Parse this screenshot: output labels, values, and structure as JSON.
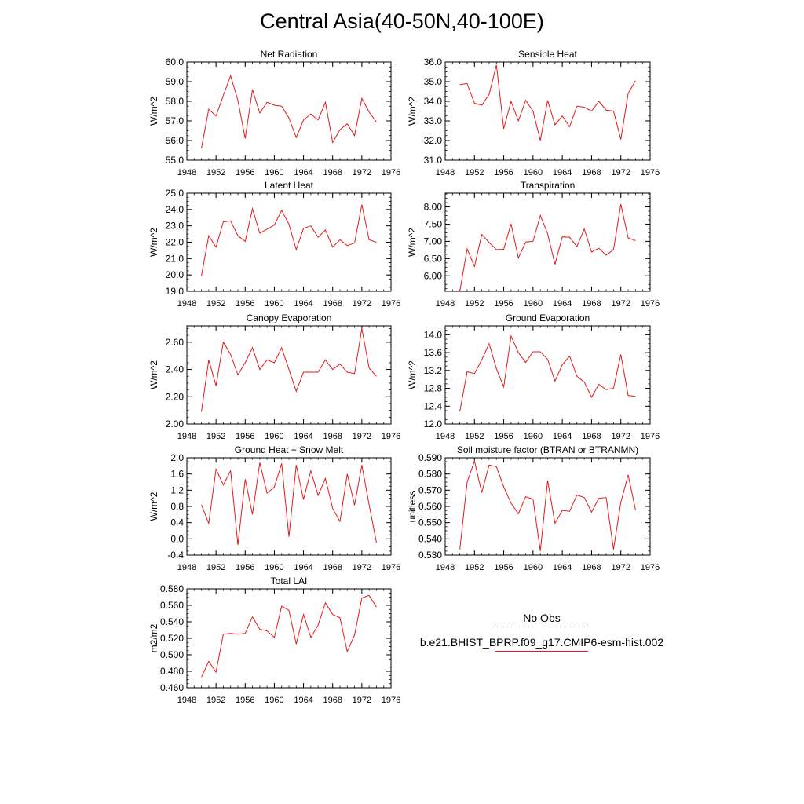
{
  "page": {
    "title": "Central Asia(40-50N,40-100E)"
  },
  "legend": {
    "obs_label": "No Obs",
    "model_label": "b.e21.BHIST_BPRP.f09_g17.CMIP6-esm-hist.002"
  },
  "colors": {
    "model_line": "#e31a1c",
    "obs_line": "#555555",
    "axis": "#000000"
  },
  "chart_data": [
    {
      "type": "line",
      "title": "Net Radiation",
      "ylabel": "W/m^2",
      "xlim": [
        1948,
        1976
      ],
      "ylim": [
        55.0,
        60.0
      ],
      "xticks": [
        1948,
        1952,
        1956,
        1960,
        1964,
        1968,
        1972,
        1976
      ],
      "yticks": [
        "55.0",
        "56.0",
        "57.0",
        "58.0",
        "59.0",
        "60.0"
      ],
      "x": [
        1950,
        1951,
        1952,
        1953,
        1954,
        1955,
        1956,
        1957,
        1958,
        1959,
        1960,
        1961,
        1962,
        1963,
        1964,
        1965,
        1966,
        1967,
        1968,
        1969,
        1970,
        1971,
        1972,
        1973,
        1974
      ],
      "series": [
        {
          "values": [
            55.6,
            57.6,
            57.25,
            58.3,
            59.3,
            58.05,
            56.1,
            58.6,
            57.4,
            57.95,
            57.8,
            57.75,
            57.15,
            56.15,
            57.05,
            57.35,
            57.05,
            57.95,
            55.9,
            56.55,
            56.85,
            56.25,
            58.15,
            57.45,
            56.95
          ]
        }
      ]
    },
    {
      "type": "line",
      "title": "Sensible Heat",
      "ylabel": "W/m^2",
      "xlim": [
        1948,
        1976
      ],
      "ylim": [
        31.0,
        36.0
      ],
      "xticks": [
        1948,
        1952,
        1956,
        1960,
        1964,
        1968,
        1972,
        1976
      ],
      "yticks": [
        "31.0",
        "32.0",
        "33.0",
        "34.0",
        "35.0",
        "36.0"
      ],
      "x": [
        1950,
        1951,
        1952,
        1953,
        1954,
        1955,
        1956,
        1957,
        1958,
        1959,
        1960,
        1961,
        1962,
        1963,
        1964,
        1965,
        1966,
        1967,
        1968,
        1969,
        1970,
        1971,
        1972,
        1973,
        1974
      ],
      "series": [
        {
          "values": [
            34.85,
            34.9,
            33.9,
            33.8,
            34.35,
            35.85,
            32.6,
            34.0,
            33.0,
            34.05,
            33.5,
            32.0,
            34.05,
            32.8,
            33.25,
            32.7,
            33.75,
            33.7,
            33.5,
            34.0,
            33.55,
            33.5,
            32.05,
            34.4,
            35.05
          ]
        }
      ]
    },
    {
      "type": "line",
      "title": "Latent Heat",
      "ylabel": "W/m^2",
      "xlim": [
        1948,
        1976
      ],
      "ylim": [
        19.0,
        25.0
      ],
      "xticks": [
        1948,
        1952,
        1956,
        1960,
        1964,
        1968,
        1972,
        1976
      ],
      "yticks": [
        "19.0",
        "20.0",
        "21.0",
        "22.0",
        "23.0",
        "24.0",
        "25.0"
      ],
      "x": [
        1950,
        1951,
        1952,
        1953,
        1954,
        1955,
        1956,
        1957,
        1958,
        1959,
        1960,
        1961,
        1962,
        1963,
        1964,
        1965,
        1966,
        1967,
        1968,
        1969,
        1970,
        1971,
        1972,
        1973,
        1974
      ],
      "series": [
        {
          "values": [
            19.95,
            22.4,
            21.7,
            23.25,
            23.3,
            22.4,
            22.05,
            24.05,
            22.55,
            22.8,
            23.05,
            23.95,
            23.1,
            21.55,
            22.85,
            23.0,
            22.3,
            22.75,
            21.7,
            22.15,
            21.8,
            21.95,
            24.3,
            22.15,
            22.0
          ]
        }
      ]
    },
    {
      "type": "line",
      "title": "Transpiration",
      "ylabel": "W/m^2",
      "xlim": [
        1948,
        1976
      ],
      "ylim": [
        5.55,
        8.4
      ],
      "xticks": [
        1948,
        1952,
        1956,
        1960,
        1964,
        1968,
        1972,
        1976
      ],
      "yticks": [
        "6.00",
        "6.50",
        "7.00",
        "7.50",
        "8.00"
      ],
      "x": [
        1950,
        1951,
        1952,
        1953,
        1954,
        1955,
        1956,
        1957,
        1958,
        1959,
        1960,
        1961,
        1962,
        1963,
        1964,
        1965,
        1966,
        1967,
        1968,
        1969,
        1970,
        1971,
        1972,
        1973,
        1974
      ],
      "series": [
        {
          "values": [
            5.55,
            6.78,
            6.27,
            7.2,
            6.97,
            6.76,
            6.77,
            7.51,
            6.52,
            6.98,
            7.0,
            7.75,
            7.22,
            6.33,
            7.13,
            7.12,
            6.85,
            7.36,
            6.69,
            6.8,
            6.6,
            6.76,
            8.08,
            7.1,
            7.02
          ]
        }
      ]
    },
    {
      "type": "line",
      "title": "Canopy Evaporation",
      "ylabel": "W/m^2",
      "xlim": [
        1948,
        1976
      ],
      "ylim": [
        2.0,
        2.72
      ],
      "xticks": [
        1948,
        1952,
        1956,
        1960,
        1964,
        1968,
        1972,
        1976
      ],
      "yticks": [
        "2.00",
        "2.20",
        "2.40",
        "2.60"
      ],
      "x": [
        1950,
        1951,
        1952,
        1953,
        1954,
        1955,
        1956,
        1957,
        1958,
        1959,
        1960,
        1961,
        1962,
        1963,
        1964,
        1965,
        1966,
        1967,
        1968,
        1969,
        1970,
        1971,
        1972,
        1973,
        1974
      ],
      "series": [
        {
          "values": [
            2.09,
            2.47,
            2.28,
            2.6,
            2.51,
            2.36,
            2.45,
            2.56,
            2.4,
            2.47,
            2.45,
            2.56,
            2.4,
            2.24,
            2.38,
            2.38,
            2.38,
            2.47,
            2.4,
            2.44,
            2.38,
            2.37,
            2.7,
            2.41,
            2.35
          ]
        }
      ]
    },
    {
      "type": "line",
      "title": "Ground Evaporation",
      "ylabel": "W/m^2",
      "xlim": [
        1948,
        1976
      ],
      "ylim": [
        12.0,
        14.2
      ],
      "xticks": [
        1948,
        1952,
        1956,
        1960,
        1964,
        1968,
        1972,
        1976
      ],
      "yticks": [
        "12.0",
        "12.4",
        "12.8",
        "13.2",
        "13.6",
        "14.0"
      ],
      "x": [
        1950,
        1951,
        1952,
        1953,
        1954,
        1955,
        1956,
        1957,
        1958,
        1959,
        1960,
        1961,
        1962,
        1963,
        1964,
        1965,
        1966,
        1967,
        1968,
        1969,
        1970,
        1971,
        1972,
        1973,
        1974
      ],
      "series": [
        {
          "values": [
            12.28,
            13.17,
            13.13,
            13.44,
            13.8,
            13.24,
            12.83,
            13.97,
            13.6,
            13.38,
            13.62,
            13.62,
            13.45,
            12.96,
            13.33,
            13.52,
            13.07,
            12.94,
            12.6,
            12.89,
            12.77,
            12.8,
            13.56,
            12.64,
            12.62
          ]
        }
      ]
    },
    {
      "type": "line",
      "title": "Ground Heat + Snow Melt",
      "ylabel": "W/m^2",
      "xlim": [
        1948,
        1976
      ],
      "ylim": [
        -0.4,
        2.0
      ],
      "xticks": [
        1948,
        1952,
        1956,
        1960,
        1964,
        1968,
        1972,
        1976
      ],
      "yticks": [
        "-0.4",
        "0.0",
        "0.4",
        "0.8",
        "1.2",
        "1.6",
        "2.0"
      ],
      "x": [
        1950,
        1951,
        1952,
        1953,
        1954,
        1955,
        1956,
        1957,
        1958,
        1959,
        1960,
        1961,
        1962,
        1963,
        1964,
        1965,
        1966,
        1967,
        1968,
        1969,
        1970,
        1971,
        1972,
        1973,
        1974
      ],
      "series": [
        {
          "values": [
            0.84,
            0.38,
            1.72,
            1.33,
            1.68,
            -0.15,
            1.47,
            0.6,
            1.88,
            1.13,
            1.28,
            1.86,
            0.05,
            1.82,
            0.97,
            1.68,
            1.07,
            1.49,
            0.75,
            0.43,
            1.6,
            0.83,
            1.82,
            0.84,
            -0.09
          ]
        }
      ]
    },
    {
      "type": "line",
      "title": "Soil moisture factor (BTRAN or BTRANMN)",
      "ylabel": "unitless",
      "xlim": [
        1948,
        1976
      ],
      "ylim": [
        0.53,
        0.59
      ],
      "xticks": [
        1948,
        1952,
        1956,
        1960,
        1964,
        1968,
        1972,
        1976
      ],
      "yticks": [
        "0.530",
        "0.540",
        "0.550",
        "0.560",
        "0.570",
        "0.580",
        "0.590"
      ],
      "x": [
        1950,
        1951,
        1952,
        1953,
        1954,
        1955,
        1956,
        1957,
        1958,
        1959,
        1960,
        1961,
        1962,
        1963,
        1964,
        1965,
        1966,
        1967,
        1968,
        1969,
        1970,
        1971,
        1972,
        1973,
        1974
      ],
      "series": [
        {
          "values": [
            0.5335,
            0.575,
            0.588,
            0.5685,
            0.5855,
            0.5845,
            0.572,
            0.562,
            0.5555,
            0.566,
            0.5645,
            0.5325,
            0.576,
            0.5495,
            0.5575,
            0.557,
            0.567,
            0.5655,
            0.5565,
            0.565,
            0.5655,
            0.5335,
            0.5625,
            0.5795,
            0.558
          ]
        }
      ]
    },
    {
      "type": "line",
      "title": "Total LAI",
      "ylabel": "m2/m2",
      "xlim": [
        1948,
        1976
      ],
      "ylim": [
        0.46,
        0.58
      ],
      "xticks": [
        1948,
        1952,
        1956,
        1960,
        1964,
        1968,
        1972,
        1976
      ],
      "yticks": [
        "0.460",
        "0.480",
        "0.500",
        "0.520",
        "0.540",
        "0.560",
        "0.580"
      ],
      "x": [
        1950,
        1951,
        1952,
        1953,
        1954,
        1955,
        1956,
        1957,
        1958,
        1959,
        1960,
        1961,
        1962,
        1963,
        1964,
        1965,
        1966,
        1967,
        1968,
        1969,
        1970,
        1971,
        1972,
        1973,
        1974
      ],
      "series": [
        {
          "values": [
            0.473,
            0.492,
            0.479,
            0.525,
            0.526,
            0.525,
            0.526,
            0.546,
            0.531,
            0.529,
            0.521,
            0.559,
            0.554,
            0.513,
            0.549,
            0.521,
            0.536,
            0.563,
            0.549,
            0.545,
            0.504,
            0.524,
            0.569,
            0.572,
            0.558
          ]
        }
      ]
    }
  ]
}
